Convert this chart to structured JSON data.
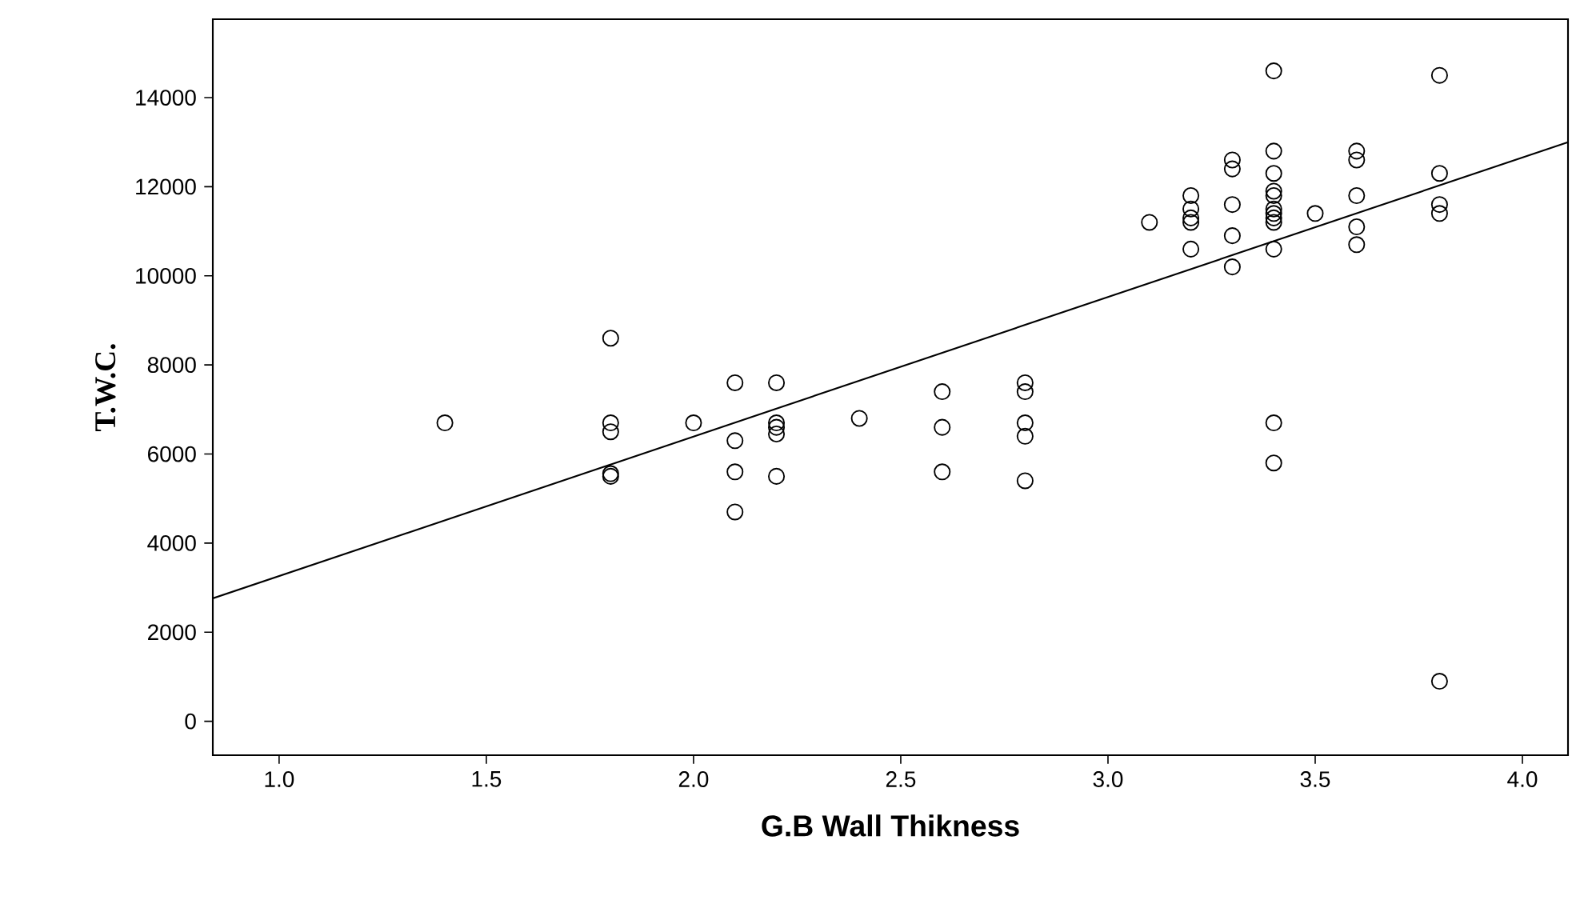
{
  "chart_data": {
    "type": "scatter",
    "xlabel": "G.B Wall Thikness",
    "ylabel": "T.W.C.",
    "xlim": [
      0.84,
      4.11
    ],
    "ylim": [
      -760,
      15760
    ],
    "xticks": [
      {
        "value": 1.0,
        "label": "1.0"
      },
      {
        "value": 1.5,
        "label": "1.5"
      },
      {
        "value": 2.0,
        "label": "2.0"
      },
      {
        "value": 2.5,
        "label": "2.5"
      },
      {
        "value": 3.0,
        "label": "3.0"
      },
      {
        "value": 3.5,
        "label": "3.5"
      },
      {
        "value": 4.0,
        "label": "4.0"
      }
    ],
    "yticks": [
      0,
      2000,
      4000,
      6000,
      8000,
      10000,
      12000,
      14000
    ],
    "grid": false,
    "series": [
      {
        "marker": "circle",
        "color": "#000000",
        "x": [
          1.4,
          1.8,
          1.8,
          1.8,
          1.8,
          1.8,
          2.0,
          2.1,
          2.1,
          2.1,
          2.1,
          2.2,
          2.2,
          2.2,
          2.2,
          2.2,
          2.4,
          2.6,
          2.6,
          2.6,
          2.8,
          2.8,
          2.8,
          2.8,
          2.8,
          3.1,
          3.2,
          3.2,
          3.2,
          3.2,
          3.2,
          3.3,
          3.3,
          3.3,
          3.3,
          3.3,
          3.4,
          3.4,
          3.4,
          3.4,
          3.4,
          3.4,
          3.4,
          3.4,
          3.4,
          3.4,
          3.4,
          3.4,
          3.5,
          3.6,
          3.6,
          3.6,
          3.6,
          3.6,
          3.8,
          3.8,
          3.8,
          3.8,
          3.8
        ],
        "values": [
          6700,
          8600,
          6700,
          6500,
          5560,
          5500,
          6700,
          7600,
          6300,
          5600,
          4700,
          7600,
          6700,
          6600,
          6450,
          5500,
          6800,
          7400,
          6600,
          5600,
          7600,
          7400,
          6700,
          6400,
          5400,
          11200,
          11800,
          11500,
          11300,
          11200,
          10600,
          12600,
          12400,
          11600,
          10900,
          10200,
          14600,
          12800,
          12300,
          11900,
          11800,
          11500,
          11400,
          11300,
          11200,
          10600,
          6700,
          5800,
          11400,
          12800,
          12600,
          11800,
          11100,
          10700,
          14500,
          12300,
          11600,
          11400,
          900
        ]
      },
      {
        "type": "line",
        "color": "#000000",
        "line_style": "solid",
        "x": [
          0.84,
          4.11
        ],
        "values": [
          2760,
          13000
        ]
      }
    ]
  }
}
